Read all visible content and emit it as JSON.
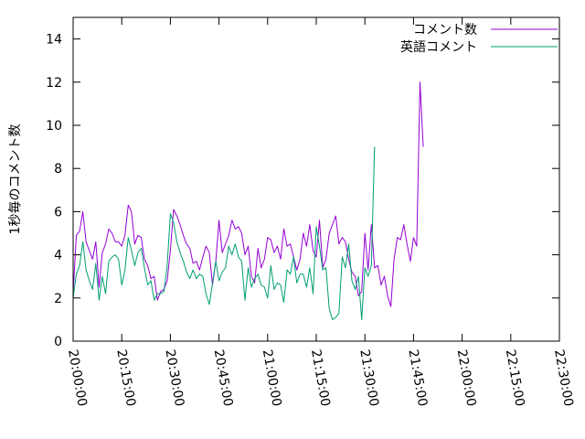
{
  "chart_data": {
    "type": "line",
    "title": "",
    "xlabel": "",
    "ylabel": "1秒毎のコメント数",
    "xlim": [
      "20:00:00",
      "22:30:00"
    ],
    "ylim": [
      0,
      15
    ],
    "x_ticks": [
      "20:00:00",
      "20:15:00",
      "20:30:00",
      "20:45:00",
      "21:00:00",
      "21:15:00",
      "21:30:00",
      "21:45:00",
      "22:00:00",
      "22:15:00",
      "22:30:00"
    ],
    "y_ticks": [
      0,
      2,
      4,
      6,
      8,
      10,
      12,
      14
    ],
    "y_tick_labels": [
      "0",
      "2",
      "4",
      "6",
      "8",
      "10",
      "12",
      "14"
    ],
    "grid": false,
    "legend_position": "top-right",
    "series": [
      {
        "name": "コメント数",
        "color": "#9400d3",
        "points": [
          [
            "20:00:00",
            2.2
          ],
          [
            "20:01:00",
            4.9
          ],
          [
            "20:02:00",
            5.1
          ],
          [
            "20:03:00",
            6.0
          ],
          [
            "20:04:00",
            4.6
          ],
          [
            "20:05:00",
            4.2
          ],
          [
            "20:06:00",
            3.8
          ],
          [
            "20:07:00",
            4.6
          ],
          [
            "20:08:00",
            2.5
          ],
          [
            "20:09:00",
            4.1
          ],
          [
            "20:10:00",
            4.5
          ],
          [
            "20:11:00",
            5.2
          ],
          [
            "20:12:00",
            5.0
          ],
          [
            "20:13:00",
            4.6
          ],
          [
            "20:14:00",
            4.6
          ],
          [
            "20:15:00",
            4.4
          ],
          [
            "20:16:00",
            4.9
          ],
          [
            "20:17:00",
            6.3
          ],
          [
            "20:18:00",
            6.0
          ],
          [
            "20:19:00",
            4.5
          ],
          [
            "20:20:00",
            4.9
          ],
          [
            "20:21:00",
            4.8
          ],
          [
            "20:22:00",
            3.8
          ],
          [
            "20:23:00",
            3.5
          ],
          [
            "20:24:00",
            2.9
          ],
          [
            "20:25:00",
            3.0
          ],
          [
            "20:26:00",
            1.9
          ],
          [
            "20:27:00",
            2.3
          ],
          [
            "20:28:00",
            2.4
          ],
          [
            "20:29:00",
            2.8
          ],
          [
            "20:30:00",
            4.2
          ],
          [
            "20:31:00",
            6.1
          ],
          [
            "20:32:00",
            5.8
          ],
          [
            "20:33:00",
            5.4
          ],
          [
            "20:34:00",
            4.9
          ],
          [
            "20:35:00",
            4.5
          ],
          [
            "20:36:00",
            4.3
          ],
          [
            "20:37:00",
            3.6
          ],
          [
            "20:38:00",
            3.7
          ],
          [
            "20:39:00",
            3.3
          ],
          [
            "20:40:00",
            3.9
          ],
          [
            "20:41:00",
            4.4
          ],
          [
            "20:42:00",
            4.1
          ],
          [
            "20:43:00",
            2.6
          ],
          [
            "20:44:00",
            3.7
          ],
          [
            "20:45:00",
            5.6
          ],
          [
            "20:46:00",
            4.1
          ],
          [
            "20:47:00",
            4.5
          ],
          [
            "20:48:00",
            4.9
          ],
          [
            "20:49:00",
            5.6
          ],
          [
            "20:50:00",
            5.2
          ],
          [
            "20:51:00",
            5.3
          ],
          [
            "20:52:00",
            5.0
          ],
          [
            "20:53:00",
            4.0
          ],
          [
            "20:54:00",
            4.4
          ],
          [
            "20:55:00",
            3.0
          ],
          [
            "20:56:00",
            2.7
          ],
          [
            "20:57:00",
            4.3
          ],
          [
            "20:58:00",
            3.4
          ],
          [
            "20:59:00",
            3.8
          ],
          [
            "21:00:00",
            4.8
          ],
          [
            "21:01:00",
            4.7
          ],
          [
            "21:02:00",
            4.1
          ],
          [
            "21:03:00",
            4.4
          ],
          [
            "21:04:00",
            3.8
          ],
          [
            "21:05:00",
            5.2
          ],
          [
            "21:06:00",
            4.4
          ],
          [
            "21:07:00",
            4.5
          ],
          [
            "21:08:00",
            3.9
          ],
          [
            "21:09:00",
            3.3
          ],
          [
            "21:10:00",
            3.8
          ],
          [
            "21:11:00",
            5.0
          ],
          [
            "21:12:00",
            4.4
          ],
          [
            "21:13:00",
            5.4
          ],
          [
            "21:14:00",
            4.2
          ],
          [
            "21:15:00",
            3.9
          ],
          [
            "21:16:00",
            5.6
          ],
          [
            "21:17:00",
            3.4
          ],
          [
            "21:18:00",
            3.8
          ],
          [
            "21:19:00",
            5.0
          ],
          [
            "21:20:00",
            5.4
          ],
          [
            "21:21:00",
            5.8
          ],
          [
            "21:22:00",
            4.5
          ],
          [
            "21:23:00",
            4.8
          ],
          [
            "21:24:00",
            4.6
          ],
          [
            "21:25:00",
            3.8
          ],
          [
            "21:26:00",
            3.2
          ],
          [
            "21:27:00",
            3.0
          ],
          [
            "21:28:00",
            2.1
          ],
          [
            "21:29:00",
            2.3
          ],
          [
            "21:30:00",
            5.0
          ],
          [
            "21:31:00",
            3.3
          ],
          [
            "21:32:00",
            5.4
          ],
          [
            "21:33:00",
            3.4
          ],
          [
            "21:34:00",
            3.5
          ],
          [
            "21:35:00",
            2.6
          ],
          [
            "21:36:00",
            3.0
          ],
          [
            "21:37:00",
            2.1
          ],
          [
            "21:38:00",
            1.6
          ],
          [
            "21:39:00",
            3.8
          ],
          [
            "21:40:00",
            4.8
          ],
          [
            "21:41:00",
            4.7
          ],
          [
            "21:42:00",
            5.4
          ],
          [
            "21:43:00",
            4.5
          ],
          [
            "21:44:00",
            3.7
          ],
          [
            "21:45:00",
            4.8
          ],
          [
            "21:46:00",
            4.4
          ],
          [
            "21:47:00",
            12.0
          ],
          [
            "21:48:00",
            9.0
          ]
        ]
      },
      {
        "name": "英語コメント",
        "color": "#009e73",
        "points": [
          [
            "20:00:00",
            2.0
          ],
          [
            "20:01:00",
            3.1
          ],
          [
            "20:02:00",
            3.5
          ],
          [
            "20:03:00",
            4.6
          ],
          [
            "20:04:00",
            3.3
          ],
          [
            "20:05:00",
            2.8
          ],
          [
            "20:06:00",
            2.4
          ],
          [
            "20:07:00",
            3.6
          ],
          [
            "20:08:00",
            1.9
          ],
          [
            "20:09:00",
            3.0
          ],
          [
            "20:10:00",
            2.2
          ],
          [
            "20:11:00",
            3.7
          ],
          [
            "20:12:00",
            3.9
          ],
          [
            "20:13:00",
            4.0
          ],
          [
            "20:14:00",
            3.8
          ],
          [
            "20:15:00",
            2.6
          ],
          [
            "20:16:00",
            3.3
          ],
          [
            "20:17:00",
            4.8
          ],
          [
            "20:18:00",
            4.2
          ],
          [
            "20:19:00",
            3.5
          ],
          [
            "20:20:00",
            4.1
          ],
          [
            "20:21:00",
            4.3
          ],
          [
            "20:22:00",
            3.4
          ],
          [
            "20:23:00",
            2.6
          ],
          [
            "20:24:00",
            2.8
          ],
          [
            "20:25:00",
            1.9
          ],
          [
            "20:26:00",
            2.2
          ],
          [
            "20:27:00",
            2.2
          ],
          [
            "20:28:00",
            2.3
          ],
          [
            "20:29:00",
            3.5
          ],
          [
            "20:30:00",
            5.9
          ],
          [
            "20:31:00",
            5.5
          ],
          [
            "20:32:00",
            4.6
          ],
          [
            "20:33:00",
            4.1
          ],
          [
            "20:34:00",
            3.7
          ],
          [
            "20:35:00",
            3.2
          ],
          [
            "20:36:00",
            2.9
          ],
          [
            "20:37:00",
            3.3
          ],
          [
            "20:38:00",
            2.9
          ],
          [
            "20:39:00",
            3.1
          ],
          [
            "20:40:00",
            3.0
          ],
          [
            "20:41:00",
            2.2
          ],
          [
            "20:42:00",
            1.7
          ],
          [
            "20:43:00",
            2.7
          ],
          [
            "20:44:00",
            3.7
          ],
          [
            "20:45:00",
            2.8
          ],
          [
            "20:46:00",
            3.2
          ],
          [
            "20:47:00",
            3.4
          ],
          [
            "20:48:00",
            4.4
          ],
          [
            "20:49:00",
            4.0
          ],
          [
            "20:50:00",
            4.5
          ],
          [
            "20:51:00",
            3.9
          ],
          [
            "20:52:00",
            3.7
          ],
          [
            "20:53:00",
            1.9
          ],
          [
            "20:54:00",
            3.4
          ],
          [
            "20:55:00",
            2.5
          ],
          [
            "20:56:00",
            2.9
          ],
          [
            "20:57:00",
            3.1
          ],
          [
            "20:58:00",
            2.6
          ],
          [
            "20:59:00",
            2.5
          ],
          [
            "21:00:00",
            2.0
          ],
          [
            "21:01:00",
            3.5
          ],
          [
            "21:02:00",
            2.4
          ],
          [
            "21:03:00",
            2.7
          ],
          [
            "21:04:00",
            2.6
          ],
          [
            "21:05:00",
            1.8
          ],
          [
            "21:06:00",
            3.3
          ],
          [
            "21:07:00",
            3.1
          ],
          [
            "21:08:00",
            3.9
          ],
          [
            "21:09:00",
            2.7
          ],
          [
            "21:10:00",
            3.1
          ],
          [
            "21:11:00",
            3.1
          ],
          [
            "21:12:00",
            2.5
          ],
          [
            "21:13:00",
            3.4
          ],
          [
            "21:14:00",
            2.2
          ],
          [
            "21:15:00",
            5.3
          ],
          [
            "21:16:00",
            4.4
          ],
          [
            "21:17:00",
            3.3
          ],
          [
            "21:18:00",
            3.4
          ],
          [
            "21:19:00",
            1.5
          ],
          [
            "21:20:00",
            1.0
          ],
          [
            "21:21:00",
            1.1
          ],
          [
            "21:22:00",
            1.3
          ],
          [
            "21:23:00",
            3.9
          ],
          [
            "21:24:00",
            3.4
          ],
          [
            "21:25:00",
            4.5
          ],
          [
            "21:26:00",
            2.8
          ],
          [
            "21:27:00",
            2.4
          ],
          [
            "21:28:00",
            3.0
          ],
          [
            "21:29:00",
            1.0
          ],
          [
            "21:30:00",
            3.4
          ],
          [
            "21:31:00",
            3.0
          ],
          [
            "21:32:00",
            3.5
          ],
          [
            "21:33:00",
            9.0
          ]
        ]
      }
    ]
  }
}
